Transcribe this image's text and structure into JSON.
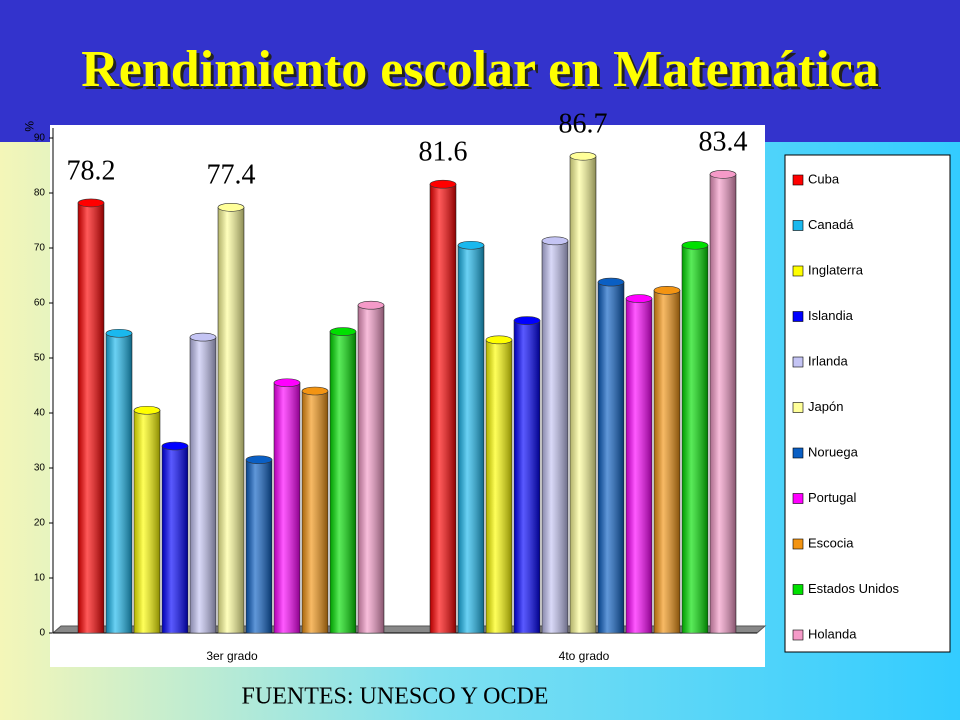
{
  "chart_data": {
    "type": "bar",
    "title": "Rendimiento escolar en Matemática",
    "y_axis_label": "%",
    "source": "FUENTES: UNESCO Y OCDE",
    "categories": [
      "3er grado",
      "4to grado"
    ],
    "ylim": [
      0,
      90
    ],
    "yticks": [
      0,
      10,
      20,
      30,
      40,
      50,
      60,
      70,
      80,
      90
    ],
    "legend": "right",
    "series": [
      {
        "name": "Cuba",
        "color": "#ff0000",
        "values": [
          78.2,
          81.6
        ],
        "value_labels": [
          "78.2",
          "81.6"
        ]
      },
      {
        "name": "Canadá",
        "color": "#1ab8ee",
        "values": [
          54.5,
          70.5
        ]
      },
      {
        "name": "Inglaterra",
        "color": "#ffff00",
        "values": [
          40.5,
          53.3
        ]
      },
      {
        "name": "Islandia",
        "color": "#0000ff",
        "values": [
          34,
          56.8
        ]
      },
      {
        "name": "Irlanda",
        "color": "#c4c4f4",
        "values": [
          53.8,
          71.3
        ]
      },
      {
        "name": "Japón",
        "color": "#ffff99",
        "values": [
          77.4,
          86.7
        ],
        "value_labels": [
          "77.4",
          "86.7"
        ]
      },
      {
        "name": "Noruega",
        "color": "#0a5fc4",
        "values": [
          31.5,
          63.8
        ]
      },
      {
        "name": "Portugal",
        "color": "#ff00ff",
        "values": [
          45.5,
          60.8
        ]
      },
      {
        "name": "Escocia",
        "color": "#f39412",
        "values": [
          44,
          62.3
        ]
      },
      {
        "name": "Estados Unidos",
        "color": "#00e000",
        "values": [
          54.8,
          70.5
        ]
      },
      {
        "name": "Holanda",
        "color": "#f59ac8",
        "values": [
          59.6,
          83.4
        ],
        "value_labels": [
          null,
          "83.4"
        ]
      }
    ]
  }
}
